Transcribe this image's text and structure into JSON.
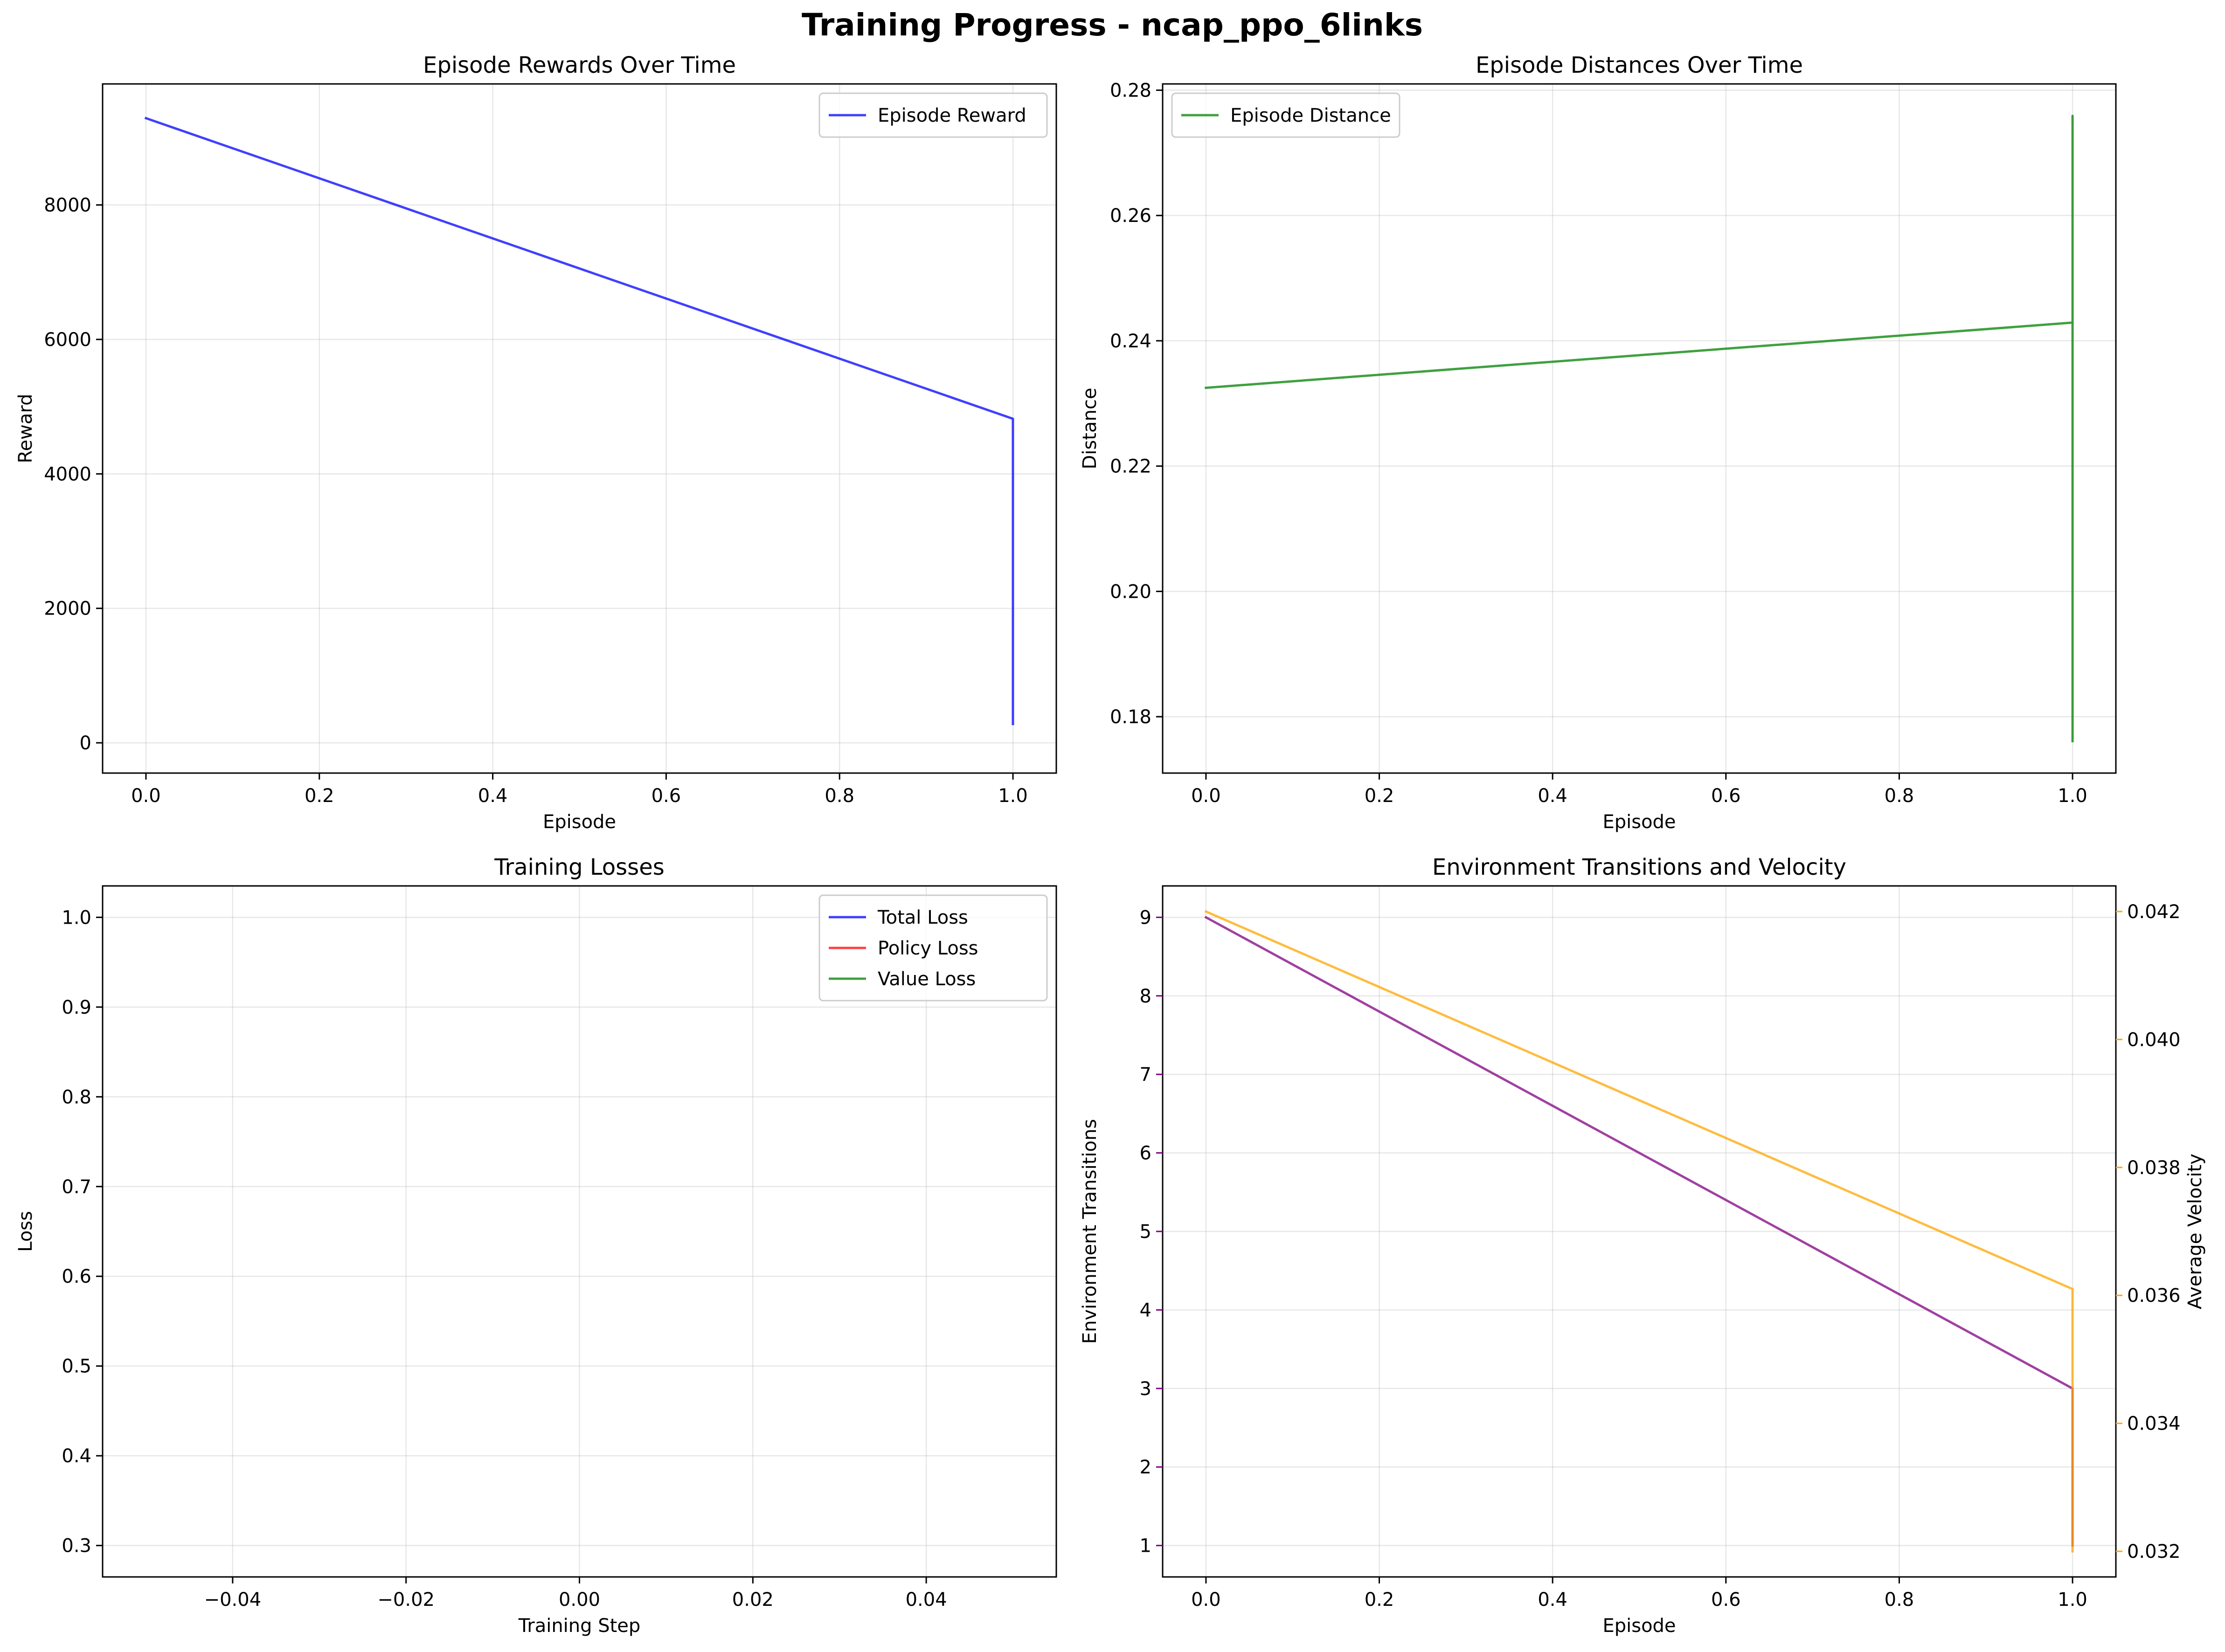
{
  "figure": {
    "title": "Training Progress - ncap_ppo_6links"
  },
  "chart_data": [
    {
      "type": "line",
      "title": "Episode Rewards Over Time",
      "xlabel": "Episode",
      "ylabel": "Reward",
      "xlim": [
        -0.05,
        1.05
      ],
      "ylim": [
        -450,
        9800
      ],
      "xticks": [
        0.0,
        0.2,
        0.4,
        0.6,
        0.8,
        1.0
      ],
      "xtick_labels": [
        "0.0",
        "0.2",
        "0.4",
        "0.6",
        "0.8",
        "1.0"
      ],
      "yticks": [
        0,
        2000,
        4000,
        6000,
        8000
      ],
      "ytick_labels": [
        "0",
        "2000",
        "4000",
        "6000",
        "8000"
      ],
      "grid": true,
      "legend_position": "upper right",
      "series": [
        {
          "name": "Episode Reward",
          "color": "#0000ff",
          "x": [
            0,
            1,
            1
          ],
          "y": [
            9290,
            4820,
            280
          ]
        }
      ]
    },
    {
      "type": "line",
      "title": "Episode Distances Over Time",
      "xlabel": "Episode",
      "ylabel": "Distance",
      "xlim": [
        -0.05,
        1.05
      ],
      "ylim": [
        0.171,
        0.281
      ],
      "xticks": [
        0.0,
        0.2,
        0.4,
        0.6,
        0.8,
        1.0
      ],
      "xtick_labels": [
        "0.0",
        "0.2",
        "0.4",
        "0.6",
        "0.8",
        "1.0"
      ],
      "yticks": [
        0.18,
        0.2,
        0.22,
        0.24,
        0.26,
        0.28
      ],
      "ytick_labels": [
        "0.18",
        "0.20",
        "0.22",
        "0.24",
        "0.26",
        "0.28"
      ],
      "grid": true,
      "legend_position": "upper left",
      "series": [
        {
          "name": "Episode Distance",
          "color": "#008000",
          "x": [
            0,
            1,
            1,
            1
          ],
          "y": [
            0.2325,
            0.2429,
            0.2759,
            0.1761
          ]
        }
      ]
    },
    {
      "type": "line",
      "title": "Training Losses",
      "xlabel": "Training Step",
      "ylabel": "Loss",
      "xlim": [
        -0.055,
        0.055
      ],
      "ylim": [
        0.265,
        1.035
      ],
      "xticks": [
        -0.04,
        -0.02,
        0.0,
        0.02,
        0.04
      ],
      "xtick_labels": [
        "−0.04",
        "−0.02",
        "0.00",
        "0.02",
        "0.04"
      ],
      "yticks": [
        0.3,
        0.4,
        0.5,
        0.6,
        0.7,
        0.8,
        0.9,
        1.0
      ],
      "ytick_labels": [
        "0.3",
        "0.4",
        "0.5",
        "0.6",
        "0.7",
        "0.8",
        "0.9",
        "1.0"
      ],
      "grid": true,
      "legend_position": "upper right",
      "series": [
        {
          "name": "Total Loss",
          "color": "#0000ff",
          "x": [],
          "y": []
        },
        {
          "name": "Policy Loss",
          "color": "#ff0000",
          "x": [],
          "y": []
        },
        {
          "name": "Value Loss",
          "color": "#008000",
          "x": [],
          "y": []
        }
      ]
    },
    {
      "type": "line",
      "title": "Environment Transitions and Velocity",
      "xlabel": "Episode",
      "ylabel": "Environment Transitions",
      "y2label": "Average Velocity",
      "xlim": [
        -0.05,
        1.05
      ],
      "ylim": [
        0.6,
        9.4
      ],
      "y2lim": [
        0.0316,
        0.0424
      ],
      "xticks": [
        0.0,
        0.2,
        0.4,
        0.6,
        0.8,
        1.0
      ],
      "xtick_labels": [
        "0.0",
        "0.2",
        "0.4",
        "0.6",
        "0.8",
        "1.0"
      ],
      "yticks": [
        1,
        2,
        3,
        4,
        5,
        6,
        7,
        8,
        9
      ],
      "ytick_labels": [
        "1",
        "2",
        "3",
        "4",
        "5",
        "6",
        "7",
        "8",
        "9"
      ],
      "y2ticks": [
        0.032,
        0.034,
        0.036,
        0.038,
        0.04,
        0.042
      ],
      "y2tick_labels": [
        "0.032",
        "0.034",
        "0.036",
        "0.038",
        "0.040",
        "0.042"
      ],
      "left_axis_color": "#800080",
      "right_axis_color": "#ffa500",
      "grid": true,
      "series": [
        {
          "axis": "left",
          "color": "#800080",
          "x": [
            0,
            1,
            1
          ],
          "y": [
            9,
            3,
            1
          ]
        },
        {
          "axis": "right",
          "color": "#ffa500",
          "x": [
            0,
            1,
            1
          ],
          "y": [
            0.042,
            0.0361,
            0.032
          ]
        }
      ]
    }
  ]
}
